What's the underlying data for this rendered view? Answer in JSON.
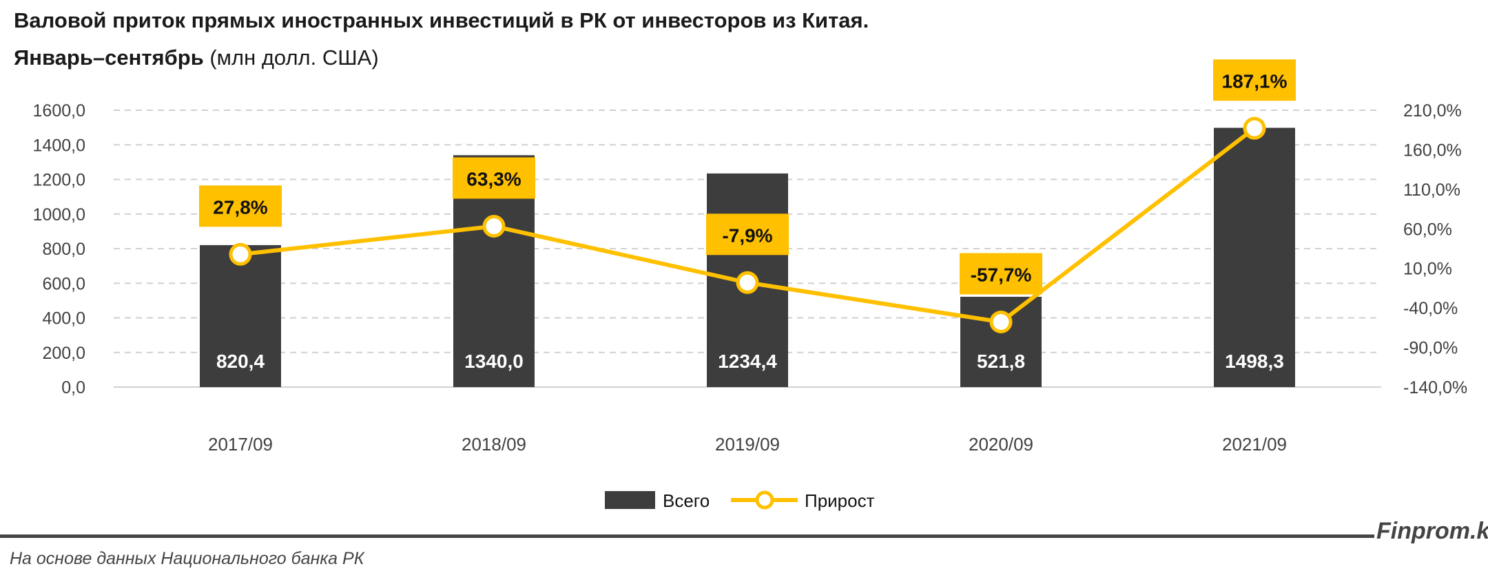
{
  "chart_data": {
    "type": "bar+line",
    "title": "Валовой приток прямых иностранных инвестиций в РК от инвесторов из Китая.",
    "subtitle_bold": "Январь–сентябрь",
    "subtitle_rest": " (млн долл. США)",
    "categories": [
      "2017/09",
      "2018/09",
      "2019/09",
      "2020/09",
      "2021/09"
    ],
    "series": [
      {
        "name": "Всего",
        "type": "bar",
        "axis": "left",
        "values": [
          820.4,
          1340.0,
          1234.4,
          521.8,
          1498.3
        ],
        "labels": [
          "820,4",
          "1340,0",
          "1234,4",
          "521,8",
          "1498,3"
        ],
        "color": "#3d3d3d"
      },
      {
        "name": "Прирост",
        "type": "line",
        "axis": "right",
        "values": [
          27.8,
          63.3,
          -7.9,
          -57.7,
          187.1
        ],
        "labels": [
          "27,8%",
          "63,3%",
          "-7,9%",
          "-57,7%",
          "187,1%"
        ],
        "color": "#FFC000"
      }
    ],
    "y_left": {
      "range": [
        0,
        1600
      ],
      "ticks": [
        "0,0",
        "200,0",
        "400,0",
        "600,0",
        "800,0",
        "1000,0",
        "1200,0",
        "1400,0",
        "1600,0"
      ]
    },
    "y_right": {
      "range": [
        -140,
        210
      ],
      "ticks": [
        "-140,0%",
        "-90,0%",
        "-40,0%",
        "10,0%",
        "60,0%",
        "110,0%",
        "160,0%",
        "210,0%"
      ]
    },
    "grid": true,
    "legend": "bottom"
  },
  "footer": {
    "brand": "Finprom.kz",
    "source": "На основе данных Национального банка РК"
  }
}
